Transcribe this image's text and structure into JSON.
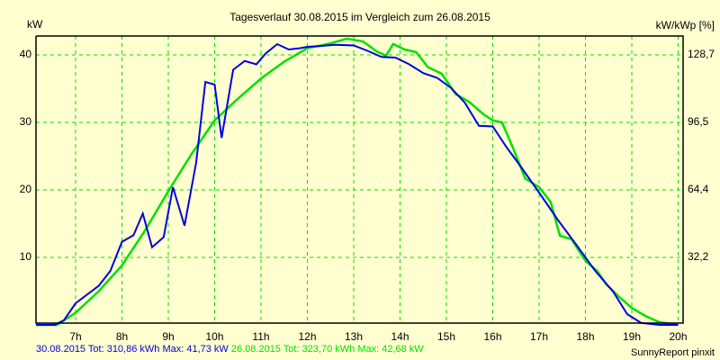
{
  "chart_data": {
    "type": "line",
    "title": "Tagesverlauf 30.08.2015 im Vergleich zum 26.08.2015",
    "ylabel": "kW",
    "ylabel_right": "kW/kWp [%]",
    "xlabel": "",
    "ylim": [
      0,
      43
    ],
    "xlim": [
      6.1,
      20.05
    ],
    "grid": true,
    "y_ticks": [
      "10",
      "20",
      "30",
      "40"
    ],
    "y_tick_values": [
      10,
      20,
      30,
      40
    ],
    "y_right_ticks": [
      "32,2",
      "64,4",
      "96,5",
      "128,7"
    ],
    "x_ticks": [
      "7h",
      "8h",
      "9h",
      "10h",
      "11h",
      "12h",
      "13h",
      "14h",
      "15h",
      "16h",
      "17h",
      "18h",
      "19h",
      "20h"
    ],
    "x_tick_values": [
      7,
      8,
      9,
      10,
      11,
      12,
      13,
      14,
      15,
      16,
      17,
      18,
      19,
      20
    ],
    "series": [
      {
        "name": "30.08.2015",
        "color": "#0000e0",
        "x": [
          6.1,
          6.55,
          6.75,
          7.0,
          7.5,
          7.75,
          8.0,
          8.25,
          8.45,
          8.65,
          8.9,
          9.1,
          9.35,
          9.6,
          9.8,
          10.0,
          10.15,
          10.4,
          10.65,
          10.9,
          11.1,
          11.35,
          11.6,
          11.85,
          12.0,
          12.25,
          12.6,
          13.0,
          13.3,
          13.6,
          13.9,
          14.2,
          14.5,
          14.8,
          15.1,
          15.4,
          15.7,
          16.0,
          16.3,
          16.6,
          17.0,
          17.4,
          17.8,
          18.2,
          18.6,
          18.9,
          19.2,
          19.6,
          20.0
        ],
        "values": [
          0,
          0,
          0.7,
          3.2,
          5.8,
          8.0,
          12.3,
          13.3,
          16.5,
          11.5,
          13.0,
          20.4,
          14.7,
          24.0,
          36.0,
          35.6,
          27.7,
          37.8,
          39.1,
          38.6,
          40.2,
          41.6,
          40.8,
          41.0,
          41.2,
          41.3,
          41.5,
          41.4,
          40.6,
          39.7,
          39.6,
          38.6,
          37.3,
          36.6,
          35.1,
          32.9,
          29.5,
          29.4,
          26.3,
          23.5,
          19.6,
          15.6,
          11.9,
          8.1,
          4.9,
          1.6,
          0.3,
          0,
          0
        ]
      },
      {
        "name": "26.08.2015",
        "color": "#00e000",
        "x": [
          6.1,
          6.6,
          7.0,
          7.5,
          8.0,
          8.5,
          9.0,
          9.5,
          10.0,
          10.5,
          11.0,
          11.5,
          12.0,
          12.5,
          12.85,
          13.2,
          13.5,
          13.7,
          13.85,
          14.1,
          14.35,
          14.6,
          14.9,
          15.2,
          15.5,
          15.8,
          16.0,
          16.2,
          16.45,
          16.7,
          17.0,
          17.25,
          17.45,
          17.7,
          18.0,
          18.25,
          18.45,
          18.75,
          19.0,
          19.3,
          19.6,
          20.0
        ],
        "values": [
          0,
          0,
          1.8,
          5.0,
          8.8,
          14.0,
          19.8,
          25.3,
          30.3,
          33.5,
          36.5,
          39.0,
          41.0,
          41.7,
          42.4,
          42.0,
          40.5,
          39.9,
          41.6,
          40.8,
          40.4,
          38.2,
          37.2,
          34.2,
          33.0,
          31.2,
          30.3,
          30.0,
          26.0,
          21.7,
          20.4,
          18.2,
          13.2,
          12.7,
          9.5,
          8.0,
          6.0,
          4.0,
          2.5,
          1.3,
          0.4,
          0
        ]
      }
    ],
    "legend_position": "bottom",
    "summary": {
      "day1": {
        "date": "30.08.2015",
        "tot": "310,86 kWh",
        "max": "41,73 kW"
      },
      "day2": {
        "date": "26.08.2015",
        "tot": "323,70 kWh",
        "max": "42,68 kW"
      }
    }
  },
  "labels": {
    "title": "Tagesverlauf 30.08.2015 im Vergleich zum 26.08.2015",
    "ylabel_left": "kW",
    "ylabel_right": "kW/kWp [%]",
    "footer_day1": "30.08.2015 Tot: 310,86 kWh Max: 41,73 kW",
    "footer_day2": "26.08.2015 Tot: 323,70 kWh Max: 42,68 kW",
    "credit": "SunnyReport pinxit"
  },
  "colors": {
    "background": "#ffffd0",
    "grid": "#00e000",
    "series1": "#0000e0",
    "series2": "#00e000",
    "axis": "#000000"
  }
}
